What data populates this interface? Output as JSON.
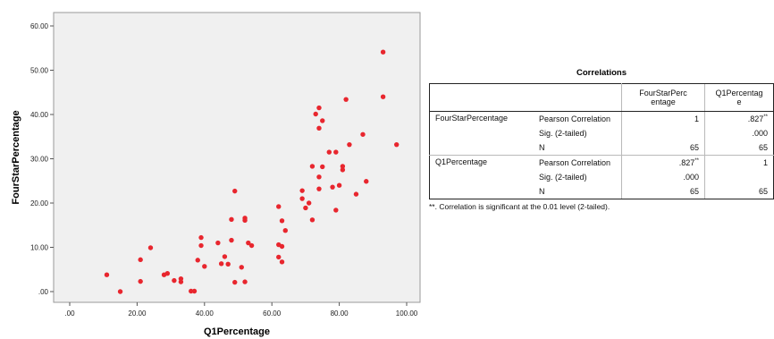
{
  "chart_data": {
    "type": "scatter",
    "xlabel": "Q1Percentage",
    "ylabel": "FourStarPercentage",
    "xlim": [
      0,
      100
    ],
    "ylim": [
      0,
      60
    ],
    "x_ticks": [
      ".00",
      "20.00",
      "40.00",
      "60.00",
      "80.00",
      "100.00"
    ],
    "y_ticks": [
      ".00",
      "10.00",
      "20.00",
      "30.00",
      "40.00",
      "50.00",
      "60.00"
    ],
    "grid": false,
    "point_color": "#e8262e",
    "plot_background": "#f0f0f0",
    "points": [
      [
        11,
        3.8
      ],
      [
        15,
        0
      ],
      [
        21,
        2.3
      ],
      [
        21,
        7.2
      ],
      [
        24,
        9.9
      ],
      [
        28,
        3.8
      ],
      [
        29,
        4.1
      ],
      [
        31,
        2.5
      ],
      [
        33,
        2.2
      ],
      [
        33,
        2.9
      ],
      [
        36,
        0.1
      ],
      [
        37,
        0.1
      ],
      [
        38,
        7.1
      ],
      [
        39,
        12.2
      ],
      [
        39,
        10.4
      ],
      [
        40,
        5.7
      ],
      [
        44,
        11
      ],
      [
        45,
        6.3
      ],
      [
        46,
        7.9
      ],
      [
        47,
        6.2
      ],
      [
        48,
        16.3
      ],
      [
        48,
        11.6
      ],
      [
        49,
        2.1
      ],
      [
        49,
        22.7
      ],
      [
        51,
        5.5
      ],
      [
        52,
        16.1
      ],
      [
        52,
        16.6
      ],
      [
        52,
        2.2
      ],
      [
        53,
        11
      ],
      [
        54,
        10.4
      ],
      [
        62,
        10.6
      ],
      [
        62,
        19.2
      ],
      [
        62,
        7.8
      ],
      [
        63,
        6.7
      ],
      [
        63,
        10.2
      ],
      [
        63,
        16
      ],
      [
        64,
        13.8
      ],
      [
        69,
        21
      ],
      [
        69,
        22.8
      ],
      [
        70,
        18.9
      ],
      [
        71,
        20
      ],
      [
        72,
        28.3
      ],
      [
        72,
        16.2
      ],
      [
        73,
        40.1
      ],
      [
        74,
        23.2
      ],
      [
        74,
        25.9
      ],
      [
        74,
        41.5
      ],
      [
        74,
        36.9
      ],
      [
        75,
        38.6
      ],
      [
        75,
        28.2
      ],
      [
        77,
        31.5
      ],
      [
        78,
        23.6
      ],
      [
        79,
        31.5
      ],
      [
        79,
        18.4
      ],
      [
        80,
        24
      ],
      [
        81,
        28.3
      ],
      [
        81,
        27.5
      ],
      [
        82,
        43.4
      ],
      [
        83,
        33.2
      ],
      [
        85,
        22
      ],
      [
        87,
        35.5
      ],
      [
        88,
        24.9
      ],
      [
        93,
        54.1
      ],
      [
        93,
        44
      ],
      [
        97,
        33.2
      ]
    ]
  },
  "correlations": {
    "title": "Correlations",
    "columns": [
      "FourStarPerc\nentage",
      "Q1Percentag\ne"
    ],
    "groups": [
      {
        "variable": "FourStarPercentage",
        "rows": [
          {
            "stat": "Pearson Correlation",
            "values": [
              "1",
              ".827"
            ],
            "flags": [
              "",
              "**"
            ]
          },
          {
            "stat": "Sig. (2-tailed)",
            "values": [
              "",
              ".000"
            ],
            "flags": [
              "",
              ""
            ]
          },
          {
            "stat": "N",
            "values": [
              "65",
              "65"
            ],
            "flags": [
              "",
              ""
            ]
          }
        ]
      },
      {
        "variable": "Q1Percentage",
        "rows": [
          {
            "stat": "Pearson Correlation",
            "values": [
              ".827",
              "1"
            ],
            "flags": [
              "**",
              ""
            ]
          },
          {
            "stat": "Sig. (2-tailed)",
            "values": [
              ".000",
              ""
            ],
            "flags": [
              "",
              ""
            ]
          },
          {
            "stat": "N",
            "values": [
              "65",
              "65"
            ],
            "flags": [
              "",
              ""
            ]
          }
        ]
      }
    ],
    "footnote": "**. Correlation is significant at the 0.01 level (2-tailed)."
  }
}
